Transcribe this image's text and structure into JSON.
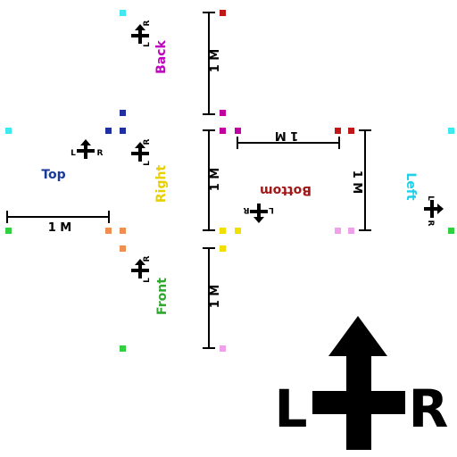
{
  "title": "",
  "colors": {
    "line": "#000000",
    "arrow": "#000000",
    "back": "#c000c0",
    "top": "#1a3a9a",
    "right": "#e8d000",
    "front": "#30a830",
    "bottom": "#a01818",
    "left": "#20d0e8",
    "cyan": "#40e8f0",
    "darkred": "#c01818",
    "magenta": "#c000a0",
    "blue": "#2030a0",
    "orange": "#f09050",
    "green": "#30d040",
    "yellow": "#f0e000",
    "pink": "#f0a0e8"
  },
  "faces": {
    "back": "Back",
    "top": "Top",
    "right": "Right",
    "front": "Front",
    "bottom": "Bottom",
    "left": "Left"
  },
  "scale_label": "1 M",
  "arrow_left_letter": "L",
  "arrow_right_letter": "R"
}
